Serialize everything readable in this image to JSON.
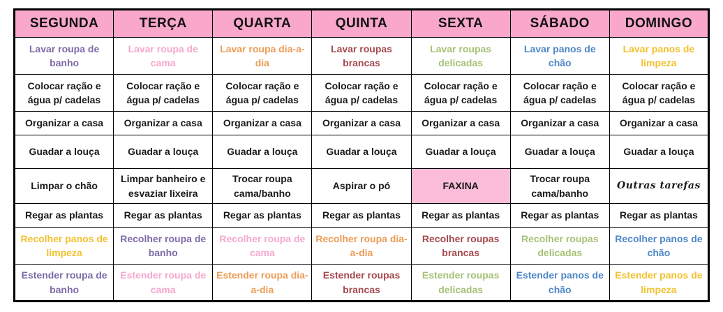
{
  "palette": {
    "header_bg": "#F9A7CB",
    "faxina_bg": "#FBBCD9",
    "purple": "#7E6BA8",
    "pink": "#F5A8CE",
    "orange": "#EC9C55",
    "dark_red": "#A5494E",
    "green": "#A5C276",
    "blue": "#4E87C7",
    "gold": "#F2C12E",
    "black": "#1A1A1A",
    "border": "#000000"
  },
  "header": {
    "bg": "header_bg",
    "columns": [
      "SEGUNDA",
      "TERÇA",
      "QUARTA",
      "QUINTA",
      "SEXTA",
      "SÁBADO",
      "DOMINGO"
    ]
  },
  "rows": [
    {
      "name": "lavar",
      "cells": [
        {
          "text": "Lavar roupa de banho",
          "color": "purple"
        },
        {
          "text": "Lavar roupa de cama",
          "color": "pink"
        },
        {
          "text": "Lavar roupa dia-a-dia",
          "color": "orange"
        },
        {
          "text": "Lavar roupas brancas",
          "color": "dark_red"
        },
        {
          "text": "Lavar roupas delicadas",
          "color": "green"
        },
        {
          "text": "Lavar panos de chão",
          "color": "blue"
        },
        {
          "text": "Lavar panos de limpeza",
          "color": "gold"
        }
      ]
    },
    {
      "name": "racao",
      "cells": [
        {
          "text": "Colocar ração e água p/ cadelas",
          "color": "black"
        },
        {
          "text": "Colocar ração e água p/ cadelas",
          "color": "black"
        },
        {
          "text": "Colocar ração e água p/ cadelas",
          "color": "black"
        },
        {
          "text": "Colocar ração e água p/ cadelas",
          "color": "black"
        },
        {
          "text": "Colocar ração e água p/ cadelas",
          "color": "black"
        },
        {
          "text": "Colocar ração e água p/ cadelas",
          "color": "black"
        },
        {
          "text": "Colocar ração e água p/ cadelas",
          "color": "black"
        }
      ]
    },
    {
      "name": "organizar",
      "cells": [
        {
          "text": "Organizar a casa",
          "color": "black"
        },
        {
          "text": "Organizar a casa",
          "color": "black"
        },
        {
          "text": "Organizar a casa",
          "color": "black"
        },
        {
          "text": "Organizar a casa",
          "color": "black"
        },
        {
          "text": "Organizar a casa",
          "color": "black"
        },
        {
          "text": "Organizar a casa",
          "color": "black"
        },
        {
          "text": "Organizar a casa",
          "color": "black"
        }
      ]
    },
    {
      "name": "louca",
      "cells": [
        {
          "text": "Guadar a louça",
          "color": "black"
        },
        {
          "text": "Guadar a louça",
          "color": "black"
        },
        {
          "text": "Guadar a louça",
          "color": "black"
        },
        {
          "text": "Guadar a louça",
          "color": "black"
        },
        {
          "text": "Guadar a louça",
          "color": "black"
        },
        {
          "text": "Guadar a louça",
          "color": "black"
        },
        {
          "text": "Guadar a louça",
          "color": "black"
        }
      ]
    },
    {
      "name": "especiais",
      "cells": [
        {
          "text": "Limpar o chão",
          "color": "black"
        },
        {
          "text": "Limpar banheiro e esvaziar lixeira",
          "color": "black"
        },
        {
          "text": "Trocar roupa cama/banho",
          "color": "black"
        },
        {
          "text": "Aspirar o pó",
          "color": "black"
        },
        {
          "text": "FAXINA",
          "color": "black",
          "bg": "faxina_bg"
        },
        {
          "text": "Trocar roupa cama/banho",
          "color": "black"
        },
        {
          "text": "Outras tarefas",
          "color": "black"
        }
      ]
    },
    {
      "name": "regar",
      "cells": [
        {
          "text": "Regar as plantas",
          "color": "black"
        },
        {
          "text": "Regar as plantas",
          "color": "black"
        },
        {
          "text": "Regar as plantas",
          "color": "black"
        },
        {
          "text": "Regar as plantas",
          "color": "black"
        },
        {
          "text": "Regar as plantas",
          "color": "black"
        },
        {
          "text": "Regar as plantas",
          "color": "black"
        },
        {
          "text": "Regar as plantas",
          "color": "black"
        }
      ]
    },
    {
      "name": "recolher",
      "cells": [
        {
          "text": "Recolher panos de limpeza",
          "color": "gold"
        },
        {
          "text": "Recolher roupa de banho",
          "color": "purple"
        },
        {
          "text": "Recolher roupa de cama",
          "color": "pink"
        },
        {
          "text": "Recolher roupa dia-a-dia",
          "color": "orange"
        },
        {
          "text": "Recolher roupas brancas",
          "color": "dark_red"
        },
        {
          "text": "Recolher roupas delicadas",
          "color": "green"
        },
        {
          "text": "Recolher panos de chão",
          "color": "blue"
        }
      ]
    },
    {
      "name": "estender",
      "cells": [
        {
          "text": "Estender roupa de banho",
          "color": "purple"
        },
        {
          "text": "Estender roupa de cama",
          "color": "pink"
        },
        {
          "text": "Estender roupa dia-a-dia",
          "color": "orange"
        },
        {
          "text": "Estender roupas brancas",
          "color": "dark_red"
        },
        {
          "text": "Estender roupas delicadas",
          "color": "green"
        },
        {
          "text": "Estender panos de chão",
          "color": "blue"
        },
        {
          "text": "Estender panos de limpeza",
          "color": "gold"
        }
      ]
    }
  ]
}
